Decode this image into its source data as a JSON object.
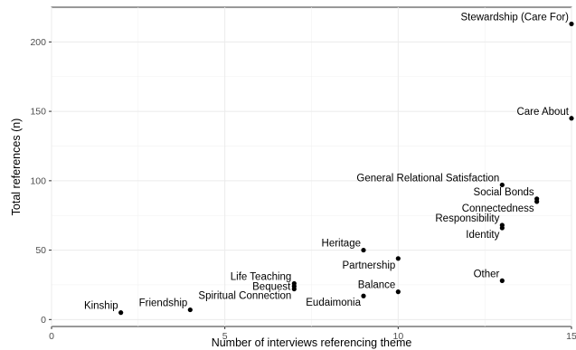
{
  "chart_data": {
    "type": "scatter",
    "xlabel": "Number of interviews referencing theme",
    "ylabel": "Total references (n)",
    "xlim": [
      0,
      15
    ],
    "ylim": [
      -5,
      225
    ],
    "x_ticks": [
      0,
      5,
      10,
      15
    ],
    "y_ticks": [
      0,
      50,
      100,
      150,
      200
    ],
    "grid": true,
    "theme": "black-and-white",
    "point_color": "#000000",
    "points": [
      {
        "label": "Stewardship (Care For)",
        "x": 15,
        "y": 213,
        "label_pos": "left-above"
      },
      {
        "label": "Care About",
        "x": 15,
        "y": 145,
        "label_pos": "left-above"
      },
      {
        "label": "General Relational Satisfaction",
        "x": 13,
        "y": 97,
        "label_pos": "left-above"
      },
      {
        "label": "Social Bonds",
        "x": 14,
        "y": 87,
        "label_pos": "left-above"
      },
      {
        "label": "Connectedness",
        "x": 14,
        "y": 85,
        "label_pos": "left-below"
      },
      {
        "label": "Responsibility",
        "x": 13,
        "y": 68,
        "label_pos": "left-above"
      },
      {
        "label": "Identity",
        "x": 13,
        "y": 66,
        "label_pos": "left-below"
      },
      {
        "label": "Heritage",
        "x": 9,
        "y": 50,
        "label_pos": "left-above"
      },
      {
        "label": "Partnership",
        "x": 10,
        "y": 44,
        "label_pos": "left-below"
      },
      {
        "label": "Other",
        "x": 13,
        "y": 28,
        "label_pos": "left-above"
      },
      {
        "label": "Life Teaching",
        "x": 7,
        "y": 26,
        "label_pos": "left-above"
      },
      {
        "label": "Bequest",
        "x": 7,
        "y": 24,
        "label_pos": "left"
      },
      {
        "label": "Spiritual Connection",
        "x": 7,
        "y": 22,
        "label_pos": "left-below"
      },
      {
        "label": "Balance",
        "x": 10,
        "y": 20,
        "label_pos": "left-above"
      },
      {
        "label": "Eudaimonia",
        "x": 9,
        "y": 17,
        "label_pos": "left-below"
      },
      {
        "label": "Friendship",
        "x": 4,
        "y": 7,
        "label_pos": "left-above"
      },
      {
        "label": "Kinship",
        "x": 2,
        "y": 5,
        "label_pos": "left-above"
      }
    ]
  }
}
